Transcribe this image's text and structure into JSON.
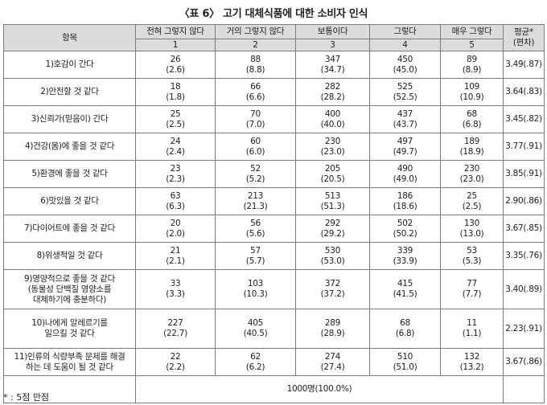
{
  "title": "〈표 6〉 고기 대체식품에 대한 소비자 인식",
  "header": {
    "item": "항목",
    "cols": [
      "전혀 그렇지 않다",
      "거의 그렇지 않다",
      "보통이다",
      "그렇다",
      "매우 그렇다"
    ],
    "nums": [
      "1",
      "2",
      "3",
      "4",
      "5"
    ],
    "mean": "평균*\n(편차)"
  },
  "rows": [
    {
      "label": "1)호감이 간다",
      "cells": [
        "26\n(2.6)",
        "88\n(8.8)",
        "347\n(34.7)",
        "450\n(45.0)",
        "89\n(8.9)"
      ],
      "mean": "3.49(.87)"
    },
    {
      "label": "2)안전할 것 같다",
      "cells": [
        "18\n(1.8)",
        "66\n(6.6)",
        "282\n(28.2)",
        "525\n(52.5)",
        "109\n(10.9)"
      ],
      "mean": "3.64(.83)"
    },
    {
      "label": "3)신뢰가(믿음이) 간다",
      "cells": [
        "25\n(2.5)",
        "70\n(7.0)",
        "400\n(40.0)",
        "437\n(43.7)",
        "68\n(6.8)"
      ],
      "mean": "3.45(.82)"
    },
    {
      "label": "4)건강(몸)에 좋을 것 같다",
      "cells": [
        "24\n(2.4)",
        "60\n(6.0)",
        "230\n(23.0)",
        "497\n(49.7)",
        "189\n(18.9)"
      ],
      "mean": "3.77(.91)"
    },
    {
      "label": "5)환경에 좋을 것 같다",
      "cells": [
        "23\n(2.3)",
        "52\n(5.2)",
        "205\n(20.5)",
        "490\n(49.0)",
        "230\n(23.0)"
      ],
      "mean": "3.85(.91)"
    },
    {
      "label": "6)맛있을 것 같다",
      "cells": [
        "63\n(6.3)",
        "213\n(21.3)",
        "513\n(51.3)",
        "186\n(18.6)",
        "25\n(2.5)"
      ],
      "mean": "2.90(.86)"
    },
    {
      "label": "7)다이어트에 좋을 것 같다",
      "cells": [
        "20\n(2.0)",
        "56\n(5.6)",
        "292\n(29.2)",
        "502\n(50.2)",
        "130\n(13.0)"
      ],
      "mean": "3.67(.85)"
    },
    {
      "label": "8)위생적일 것 같다",
      "cells": [
        "21\n(2.1)",
        "57\n(5.7)",
        "530\n(53.0)",
        "339\n(33.9)",
        "53\n(5.3)"
      ],
      "mean": "3.35(.76)"
    },
    {
      "label": "9)영양적으로 좋을 것 같다\n(동물성 단백질 영양소를\n대체하기에 충분하다)",
      "cells": [
        "33\n(3.3)",
        "103\n(10.3)",
        "372\n(37.2)",
        "415\n(41.5)",
        "77\n(7.7)"
      ],
      "mean": "3.40(.89)"
    },
    {
      "label": "10)나에게 알레르기를\n일으킬 것 같다",
      "cells": [
        "227\n(22.7)",
        "405\n(40.5)",
        "289\n(28.9)",
        "68\n(6.8)",
        "11\n(1.1)"
      ],
      "mean": "2.23(.91)"
    },
    {
      "label": "11)인류의 식량부족 문제를 해결\n하는 데 도움이 될 것 같다",
      "cells": [
        "22\n(2.2)",
        "62\n(6.2)",
        "274\n(27.4)",
        "510\n(51.0)",
        "132\n(13.2)"
      ],
      "mean": "3.67(.86)"
    }
  ],
  "total": "1000명(100.0%)",
  "footnote": "* : 5점 만점"
}
